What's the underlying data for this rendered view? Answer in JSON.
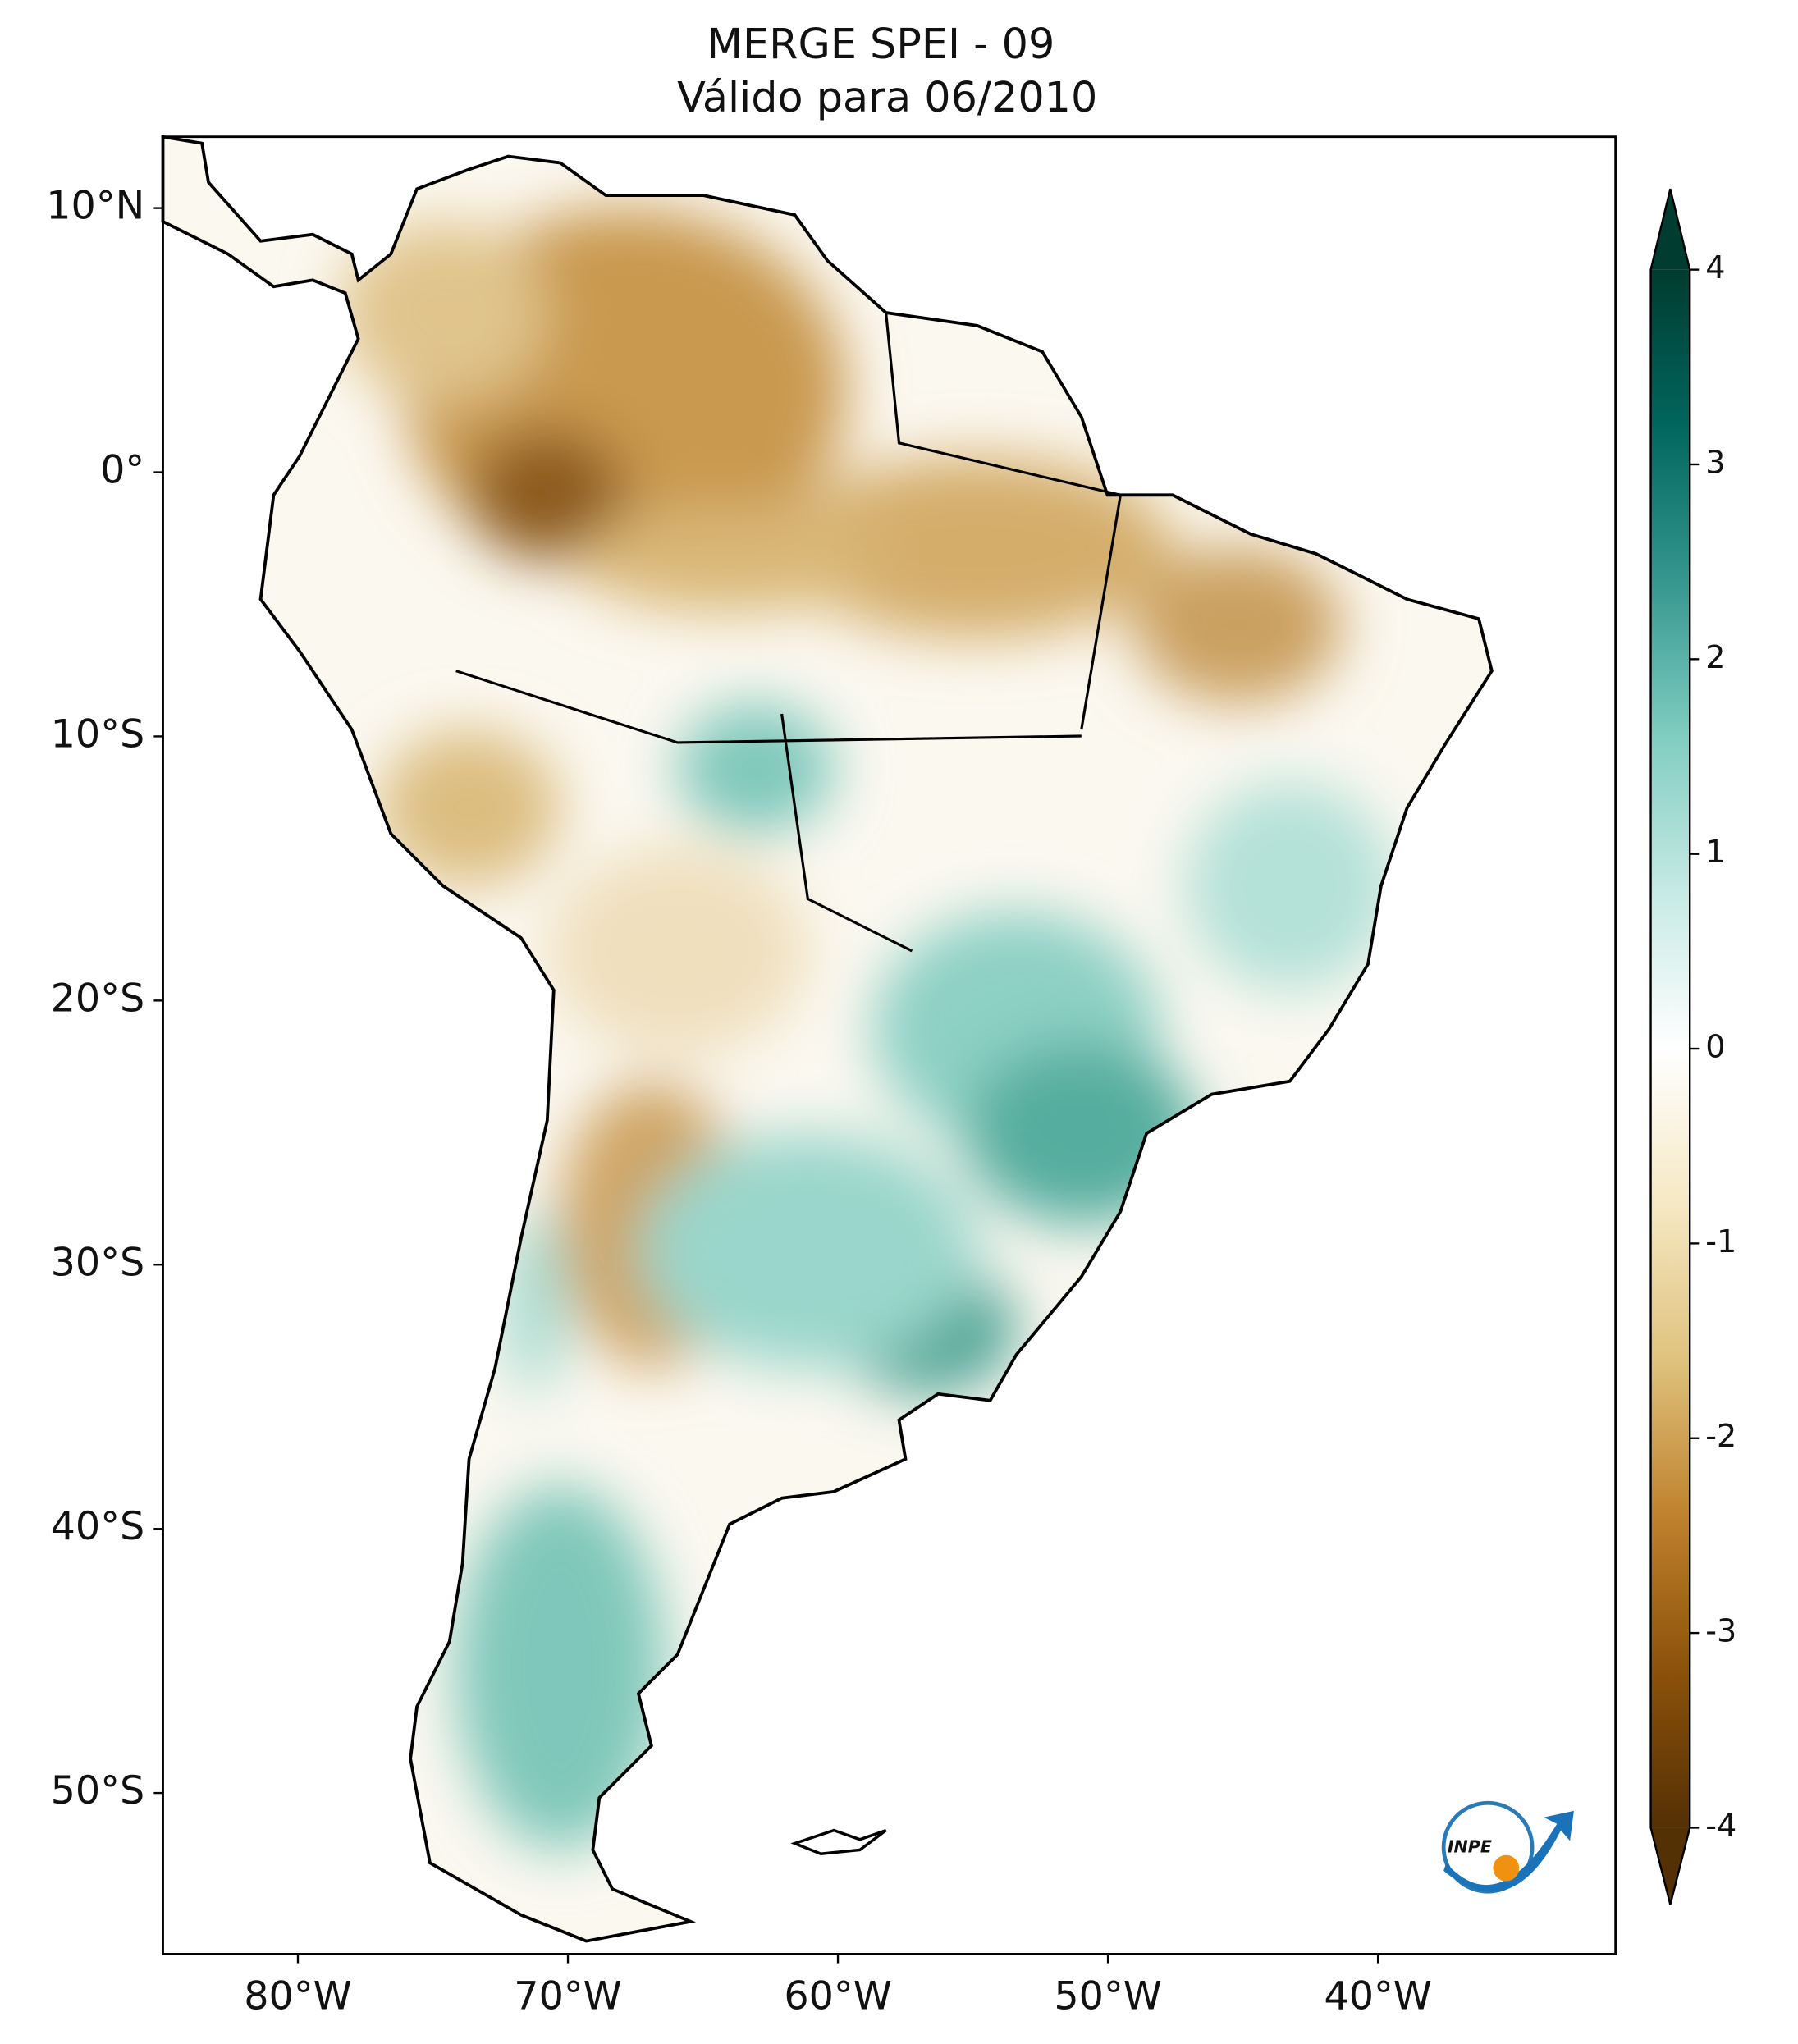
{
  "title": "MERGE   SPEI - 09",
  "subtitle": "Válido para 06/2010",
  "map": {
    "xlim": [
      -85,
      -31.2
    ],
    "ylim": [
      -56.1,
      12.7
    ],
    "xticks": [
      {
        "value": -80,
        "label": "80°W"
      },
      {
        "value": -70,
        "label": "70°W"
      },
      {
        "value": -60,
        "label": "60°W"
      },
      {
        "value": -50,
        "label": "50°W"
      },
      {
        "value": -40,
        "label": "40°W"
      }
    ],
    "yticks": [
      {
        "value": 10,
        "label": "10°N"
      },
      {
        "value": 0,
        "label": "0°"
      },
      {
        "value": -10,
        "label": "10°S"
      },
      {
        "value": -20,
        "label": "20°S"
      },
      {
        "value": -30,
        "label": "30°S"
      },
      {
        "value": -40,
        "label": "40°S"
      },
      {
        "value": -50,
        "label": "50°S"
      }
    ]
  },
  "colorbar": {
    "lim": [
      -4,
      4
    ],
    "ticks": [
      4,
      3,
      2,
      1,
      0,
      -1,
      -2,
      -3,
      -4
    ],
    "colors": [
      "#543005",
      "#8c510a",
      "#bf812d",
      "#dfc27d",
      "#f6e8c3",
      "#ffffff",
      "#c7eae5",
      "#80cdc1",
      "#35978f",
      "#01665e",
      "#003c30"
    ]
  },
  "logo": "INPE"
}
